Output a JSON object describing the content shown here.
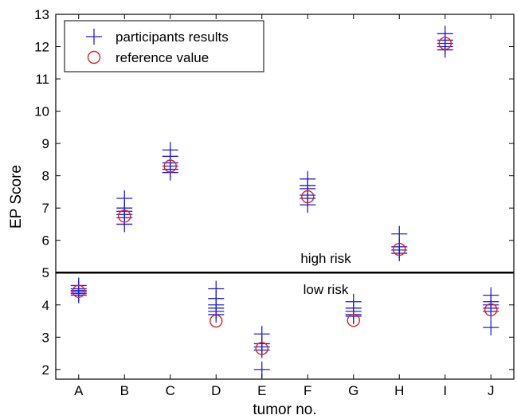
{
  "chart_data": {
    "type": "scatter",
    "xlabel": "tumor no.",
    "ylabel": "EP Score",
    "categories": [
      "A",
      "B",
      "C",
      "D",
      "E",
      "F",
      "G",
      "H",
      "I",
      "J"
    ],
    "ylim": [
      1.7,
      13
    ],
    "yticks": [
      2,
      3,
      4,
      5,
      6,
      7,
      8,
      9,
      10,
      11,
      12,
      13
    ],
    "grid": false,
    "legend_position": "top-left",
    "series": [
      {
        "name": "participants results",
        "marker": "plus",
        "color": "#1f1fd6",
        "points": [
          {
            "category": "A",
            "values": [
              4.3,
              4.35,
              4.4,
              4.45,
              4.5,
              4.6
            ]
          },
          {
            "category": "B",
            "values": [
              6.5,
              6.7,
              6.8,
              6.9,
              7.0,
              7.3
            ]
          },
          {
            "category": "C",
            "values": [
              8.1,
              8.2,
              8.3,
              8.4,
              8.6,
              8.8
            ]
          },
          {
            "category": "D",
            "values": [
              3.7,
              3.8,
              3.9,
              4.0,
              4.2,
              4.5
            ]
          },
          {
            "category": "E",
            "values": [
              2.0,
              2.6,
              2.7,
              2.8,
              3.1
            ]
          },
          {
            "category": "F",
            "values": [
              7.1,
              7.3,
              7.4,
              7.6,
              7.7,
              7.9
            ]
          },
          {
            "category": "G",
            "values": [
              3.65,
              3.7,
              3.8,
              3.9,
              4.1
            ]
          },
          {
            "category": "H",
            "values": [
              5.6,
              5.7,
              5.8,
              6.2
            ]
          },
          {
            "category": "I",
            "values": [
              11.9,
              12.0,
              12.1,
              12.2,
              12.4
            ]
          },
          {
            "category": "J",
            "values": [
              3.3,
              3.8,
              3.9,
              4.0,
              4.1,
              4.3
            ]
          }
        ]
      },
      {
        "name": "reference value",
        "marker": "circle",
        "color": "#e0201c",
        "points": [
          {
            "category": "A",
            "value": 4.42
          },
          {
            "category": "B",
            "value": 6.75
          },
          {
            "category": "C",
            "value": 8.3
          },
          {
            "category": "D",
            "value": 3.5
          },
          {
            "category": "E",
            "value": 2.65
          },
          {
            "category": "F",
            "value": 7.35
          },
          {
            "category": "G",
            "value": 3.52
          },
          {
            "category": "H",
            "value": 5.72
          },
          {
            "category": "I",
            "value": 12.1
          },
          {
            "category": "J",
            "value": 3.85
          }
        ]
      }
    ],
    "threshold": {
      "value": 5,
      "label_above": "high risk",
      "label_below": "low risk"
    }
  }
}
